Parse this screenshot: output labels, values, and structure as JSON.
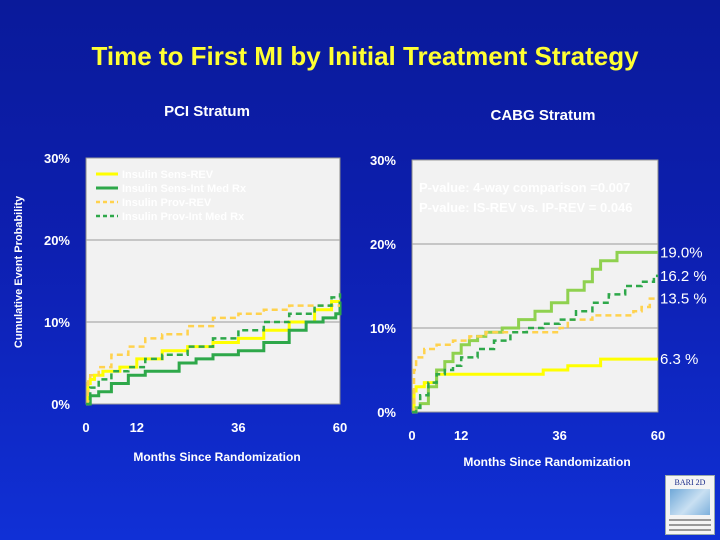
{
  "slide": {
    "title": "Time to First MI by Initial Treatment Strategy",
    "logo_text": "BARI 2D"
  },
  "colors": {
    "title": "#ffff33",
    "sens_rev": "#ffff00",
    "sens_med": "#2ea84a",
    "prov_rev": "#ffd24d",
    "prov_med": "#2ea84a",
    "cabg_sens_med": "#8fd14f",
    "axis_text": "#ffffff"
  },
  "chart_data": [
    {
      "type": "line",
      "title": "PCI Stratum",
      "xlabel": "Months Since Randomization",
      "ylabel": "Cumulative Event Probability",
      "xlim": [
        0,
        60
      ],
      "ylim": [
        0,
        30
      ],
      "x_ticks": [
        0,
        12,
        36,
        60
      ],
      "y_ticks": [
        0,
        10,
        20,
        30
      ],
      "y_tick_labels": [
        "0%",
        "10%",
        "20%",
        "30%"
      ],
      "legend_position": "top-left",
      "series": [
        {
          "name": "Insulin Sens-REV",
          "style": "solid",
          "color": "#ffff00",
          "points": [
            [
              0,
              0
            ],
            [
              0.5,
              2.5
            ],
            [
              1,
              3
            ],
            [
              2,
              3.5
            ],
            [
              4,
              4
            ],
            [
              8,
              4.5
            ],
            [
              12,
              5.5
            ],
            [
              18,
              6.5
            ],
            [
              24,
              7
            ],
            [
              30,
              7.5
            ],
            [
              36,
              8
            ],
            [
              42,
              9
            ],
            [
              48,
              10
            ],
            [
              54,
              11.5
            ],
            [
              58,
              12.5
            ],
            [
              60,
              12.5
            ]
          ]
        },
        {
          "name": "Insulin Sens-Int Med Rx",
          "style": "solid",
          "color": "#2ea84a",
          "points": [
            [
              0,
              0
            ],
            [
              1,
              1
            ],
            [
              3,
              1.5
            ],
            [
              6,
              2.5
            ],
            [
              10,
              3.5
            ],
            [
              14,
              4
            ],
            [
              18,
              4
            ],
            [
              22,
              5
            ],
            [
              26,
              5.5
            ],
            [
              30,
              6
            ],
            [
              36,
              6.5
            ],
            [
              42,
              7.5
            ],
            [
              48,
              9
            ],
            [
              52,
              10
            ],
            [
              56,
              10.5
            ],
            [
              59,
              11
            ],
            [
              60,
              12.5
            ]
          ]
        },
        {
          "name": "Insulin Prov-REV",
          "style": "dashed",
          "color": "#ffd24d",
          "points": [
            [
              0,
              0
            ],
            [
              0.5,
              3
            ],
            [
              1,
              3.5
            ],
            [
              3,
              4.5
            ],
            [
              6,
              6
            ],
            [
              10,
              7
            ],
            [
              14,
              8
            ],
            [
              18,
              8.5
            ],
            [
              24,
              9.5
            ],
            [
              30,
              10.5
            ],
            [
              36,
              11
            ],
            [
              42,
              11.5
            ],
            [
              48,
              12
            ],
            [
              54,
              12
            ],
            [
              60,
              12
            ]
          ]
        },
        {
          "name": "Insulin Prov-Int Med Rx",
          "style": "dashed",
          "color": "#2ea84a",
          "points": [
            [
              0,
              0
            ],
            [
              1,
              2
            ],
            [
              3,
              3
            ],
            [
              6,
              4
            ],
            [
              10,
              4.5
            ],
            [
              14,
              5.5
            ],
            [
              18,
              6
            ],
            [
              24,
              7
            ],
            [
              30,
              8
            ],
            [
              36,
              9
            ],
            [
              42,
              10
            ],
            [
              48,
              11
            ],
            [
              54,
              12
            ],
            [
              58,
              13
            ],
            [
              60,
              13.5
            ]
          ]
        }
      ]
    },
    {
      "type": "line",
      "title": "CABG Stratum",
      "xlabel": "Months Since Randomization",
      "ylabel": "",
      "xlim": [
        0,
        60
      ],
      "ylim": [
        0,
        30
      ],
      "x_ticks": [
        0,
        12,
        36,
        60
      ],
      "y_ticks": [
        0,
        10,
        20,
        30
      ],
      "y_tick_labels": [
        "0%",
        "10%",
        "20%",
        "30%"
      ],
      "annotations": [
        "P-value: 4-way comparison =0.007",
        "P-value: IS-REV vs. IP-REV = 0.046"
      ],
      "end_labels": [
        "19.0%",
        "16.2 %",
        "13.5 %",
        "6.3 %"
      ],
      "series": [
        {
          "name": "Insulin Sens-REV",
          "style": "solid",
          "color": "#ffff00",
          "end_label": "6.3 %",
          "points": [
            [
              0,
              0
            ],
            [
              0.5,
              2.5
            ],
            [
              1,
              3
            ],
            [
              3,
              3.5
            ],
            [
              6,
              4.5
            ],
            [
              10,
              4.5
            ],
            [
              20,
              4.5
            ],
            [
              30,
              4.5
            ],
            [
              32,
              5
            ],
            [
              36,
              5
            ],
            [
              38,
              5.5
            ],
            [
              44,
              5.5
            ],
            [
              46,
              6.3
            ],
            [
              52,
              6.3
            ],
            [
              60,
              6.3
            ]
          ]
        },
        {
          "name": "Insulin Sens-Int Med Rx",
          "style": "solid",
          "color": "#8fd14f",
          "end_label": "19.0%",
          "points": [
            [
              0,
              0
            ],
            [
              1,
              0.5
            ],
            [
              2,
              1
            ],
            [
              4,
              3
            ],
            [
              6,
              5
            ],
            [
              8,
              6
            ],
            [
              10,
              7
            ],
            [
              12,
              8
            ],
            [
              14,
              8.5
            ],
            [
              16,
              9
            ],
            [
              18,
              9.5
            ],
            [
              22,
              10
            ],
            [
              26,
              11
            ],
            [
              30,
              12
            ],
            [
              34,
              13
            ],
            [
              38,
              14.5
            ],
            [
              42,
              15.5
            ],
            [
              44,
              17
            ],
            [
              46,
              18
            ],
            [
              50,
              19
            ],
            [
              60,
              19
            ]
          ]
        },
        {
          "name": "Insulin Prov-REV",
          "style": "dashed",
          "color": "#ffd24d",
          "end_label": "13.5 %",
          "points": [
            [
              0,
              0
            ],
            [
              0.5,
              5
            ],
            [
              1,
              6.5
            ],
            [
              3,
              7.5
            ],
            [
              6,
              8
            ],
            [
              10,
              8.5
            ],
            [
              14,
              9
            ],
            [
              18,
              9.5
            ],
            [
              24,
              9.5
            ],
            [
              30,
              9.5
            ],
            [
              36,
              10
            ],
            [
              38,
              11
            ],
            [
              44,
              11.5
            ],
            [
              50,
              11.5
            ],
            [
              54,
              12
            ],
            [
              56,
              12.5
            ],
            [
              58,
              13.5
            ],
            [
              60,
              13.5
            ]
          ]
        },
        {
          "name": "Insulin Prov-Int Med Rx",
          "style": "dashed",
          "color": "#2ea84a",
          "end_label": "16.2 %",
          "points": [
            [
              0,
              0
            ],
            [
              1,
              0.5
            ],
            [
              2,
              2
            ],
            [
              4,
              3.5
            ],
            [
              6,
              4.5
            ],
            [
              8,
              5
            ],
            [
              10,
              5.5
            ],
            [
              12,
              6.5
            ],
            [
              16,
              7.5
            ],
            [
              20,
              8.5
            ],
            [
              24,
              9.5
            ],
            [
              28,
              10
            ],
            [
              32,
              10.5
            ],
            [
              36,
              11
            ],
            [
              40,
              12
            ],
            [
              44,
              13
            ],
            [
              48,
              14
            ],
            [
              52,
              15
            ],
            [
              56,
              15.5
            ],
            [
              59,
              16.2
            ],
            [
              60,
              16.2
            ]
          ]
        }
      ]
    }
  ]
}
